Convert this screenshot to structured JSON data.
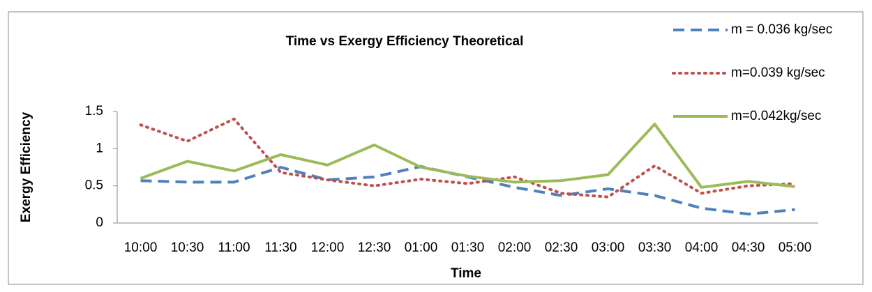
{
  "chart_data": {
    "type": "line",
    "title": "Time vs Exergy Efficiency  Theoretical",
    "x_label": "Time",
    "y_label": "Exergy Efficiency",
    "categories": [
      "10:00",
      "10:30",
      "11:00",
      "11:30",
      "12:00",
      "12:30",
      "01:00",
      "01:30",
      "02:00",
      "02:30",
      "03:00",
      "03:30",
      "04:00",
      "04:30",
      "05:00"
    ],
    "series": [
      {
        "name": "m = 0.036 kg/sec",
        "color": "#4f81bd",
        "style": "dashed",
        "values": [
          0.57,
          0.55,
          0.55,
          0.75,
          0.58,
          0.62,
          0.76,
          0.62,
          0.48,
          0.37,
          0.46,
          0.37,
          0.2,
          0.12,
          0.18
        ]
      },
      {
        "name": "m=0.039 kg/sec",
        "color": "#c0504d",
        "style": "dotted",
        "values": [
          1.32,
          1.1,
          1.4,
          0.68,
          0.58,
          0.5,
          0.59,
          0.53,
          0.62,
          0.4,
          0.35,
          0.77,
          0.4,
          0.5,
          0.53
        ]
      },
      {
        "name": "m=0.042kg/sec",
        "color": "#9bbb59",
        "style": "solid",
        "values": [
          0.6,
          0.83,
          0.7,
          0.92,
          0.78,
          1.05,
          0.75,
          0.63,
          0.55,
          0.57,
          0.65,
          1.33,
          0.48,
          0.56,
          0.49
        ]
      }
    ],
    "ylim": [
      0,
      1.5
    ],
    "yticks": [
      0,
      0.5,
      1,
      1.5
    ],
    "grid": false,
    "legend": "right"
  }
}
